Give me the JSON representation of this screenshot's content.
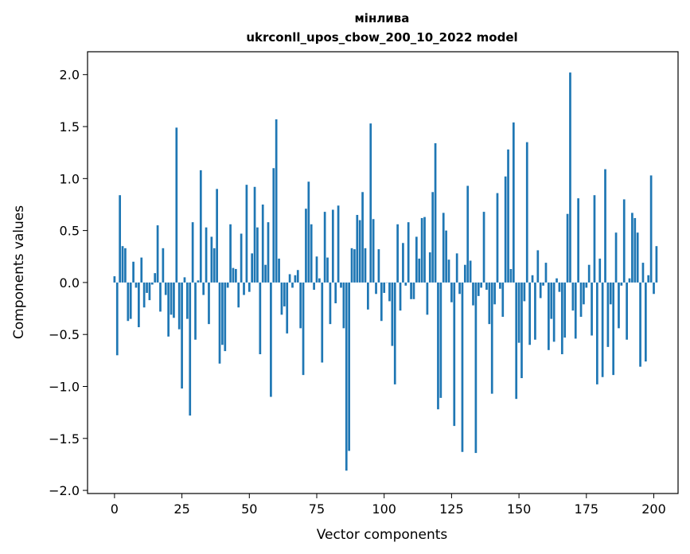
{
  "chart_data": {
    "type": "bar",
    "title_line1": "мінлива",
    "title_line2": "ukrconll_upos_cbow_200_10_2022 model",
    "xlabel": "Vector components",
    "ylabel": "Components values",
    "xlim": [
      -10,
      209
    ],
    "ylim": [
      -2.03,
      2.22
    ],
    "xticks": [
      0,
      25,
      50,
      75,
      100,
      125,
      150,
      175,
      200
    ],
    "yticks": [
      -2.0,
      -1.5,
      -1.0,
      -0.5,
      0.0,
      0.5,
      1.0,
      1.5,
      2.0
    ],
    "ytick_labels": [
      "−2.0",
      "−1.5",
      "−1.0",
      "−0.5",
      "0.0",
      "0.5",
      "1.0",
      "1.5",
      "2.0"
    ],
    "bar_color": "#1f77b4",
    "grid": false,
    "values": [
      0.06,
      -0.7,
      0.84,
      0.35,
      0.33,
      -0.37,
      -0.35,
      0.2,
      -0.05,
      -0.43,
      0.24,
      -0.24,
      -0.1,
      -0.17,
      -0.02,
      0.09,
      0.55,
      -0.28,
      0.33,
      -0.12,
      -0.52,
      -0.31,
      -0.34,
      1.49,
      -0.45,
      -1.02,
      0.05,
      -0.35,
      -1.28,
      0.58,
      -0.55,
      0.02,
      1.08,
      -0.12,
      0.53,
      -0.4,
      0.44,
      0.33,
      0.9,
      -0.78,
      -0.6,
      -0.66,
      -0.05,
      0.56,
      0.14,
      0.13,
      -0.24,
      0.47,
      -0.12,
      0.94,
      -0.09,
      0.28,
      0.92,
      0.53,
      -0.69,
      0.75,
      0.17,
      0.58,
      -1.1,
      1.1,
      1.57,
      0.23,
      -0.31,
      -0.23,
      -0.49,
      0.08,
      -0.05,
      0.07,
      0.12,
      -0.44,
      -0.89,
      0.71,
      0.97,
      0.56,
      -0.07,
      0.25,
      0.04,
      -0.77,
      0.68,
      0.24,
      -0.4,
      0.7,
      -0.2,
      0.74,
      -0.05,
      -0.44,
      -1.81,
      -1.62,
      0.33,
      0.32,
      0.65,
      0.6,
      0.87,
      0.33,
      -0.26,
      1.53,
      0.61,
      -0.11,
      0.32,
      -0.37,
      -0.1,
      0.0,
      -0.18,
      -0.61,
      -0.98,
      0.56,
      -0.27,
      0.38,
      -0.03,
      0.58,
      -0.16,
      -0.16,
      0.44,
      0.23,
      0.62,
      0.63,
      -0.31,
      0.29,
      0.87,
      1.34,
      -1.22,
      -1.11,
      0.67,
      0.5,
      0.22,
      -0.19,
      -1.38,
      0.28,
      -0.11,
      -1.63,
      0.17,
      0.93,
      0.21,
      -0.22,
      -1.64,
      -0.13,
      -0.05,
      0.68,
      -0.07,
      -0.4,
      -1.07,
      -0.21,
      0.86,
      -0.06,
      -0.33,
      1.02,
      1.28,
      0.13,
      1.54,
      -1.12,
      -0.58,
      -0.92,
      -0.18,
      1.35,
      -0.6,
      0.07,
      -0.55,
      0.31,
      -0.15,
      -0.03,
      0.19,
      -0.65,
      -0.35,
      -0.57,
      0.04,
      -0.09,
      -0.69,
      -0.53,
      0.66,
      2.02,
      -0.27,
      -0.54,
      0.81,
      -0.33,
      -0.21,
      -0.05,
      0.17,
      -0.51,
      0.84,
      -0.98,
      0.23,
      -0.91,
      1.09,
      -0.62,
      -0.21,
      -0.89,
      0.48,
      -0.44,
      -0.03,
      0.8,
      -0.55,
      0.04,
      0.67,
      0.62,
      0.48,
      -0.81,
      0.19,
      -0.76,
      0.07,
      1.03,
      -0.11,
      0.35
    ]
  }
}
